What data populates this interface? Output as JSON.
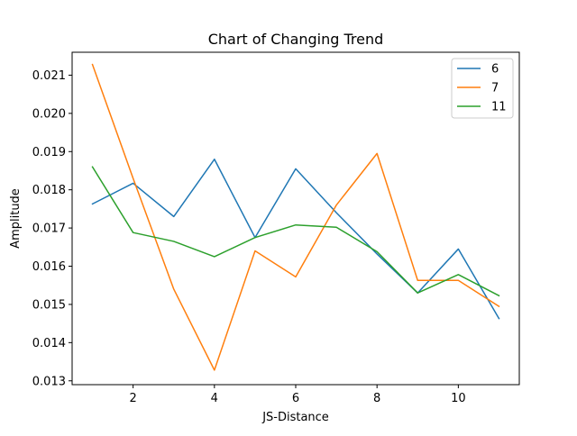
{
  "chart_data": {
    "type": "line",
    "title": "Chart of Changing Trend",
    "xlabel": "JS-Distance",
    "ylabel": "Amplitude",
    "x": [
      1,
      2,
      3,
      4,
      5,
      6,
      7,
      8,
      9,
      10,
      11
    ],
    "xlim": [
      0.5,
      11.5
    ],
    "ylim": [
      0.0129,
      0.0216
    ],
    "xticks": [
      2,
      4,
      6,
      8,
      10
    ],
    "xtick_labels": [
      "2",
      "4",
      "6",
      "8",
      "10"
    ],
    "yticks": [
      0.013,
      0.014,
      0.015,
      0.016,
      0.017,
      0.018,
      0.019,
      0.02,
      0.021
    ],
    "ytick_labels": [
      "0.013",
      "0.014",
      "0.015",
      "0.016",
      "0.017",
      "0.018",
      "0.019",
      "0.020",
      "0.021"
    ],
    "grid": false,
    "legend_position": "top-right",
    "series": [
      {
        "name": "6",
        "color": "#1f77b4",
        "values": [
          0.01763,
          0.01817,
          0.0173,
          0.0188,
          0.01675,
          0.01855,
          0.0174,
          0.01632,
          0.0153,
          0.01645,
          0.01463
        ]
      },
      {
        "name": "7",
        "color": "#ff7f0e",
        "values": [
          0.02128,
          0.0183,
          0.0154,
          0.01328,
          0.0164,
          0.01572,
          0.0176,
          0.01895,
          0.01563,
          0.01563,
          0.01495
        ]
      },
      {
        "name": "11",
        "color": "#2ca02c",
        "values": [
          0.0186,
          0.01688,
          0.01665,
          0.01625,
          0.01675,
          0.01708,
          0.01702,
          0.01638,
          0.0153,
          0.01578,
          0.01523
        ]
      }
    ]
  }
}
